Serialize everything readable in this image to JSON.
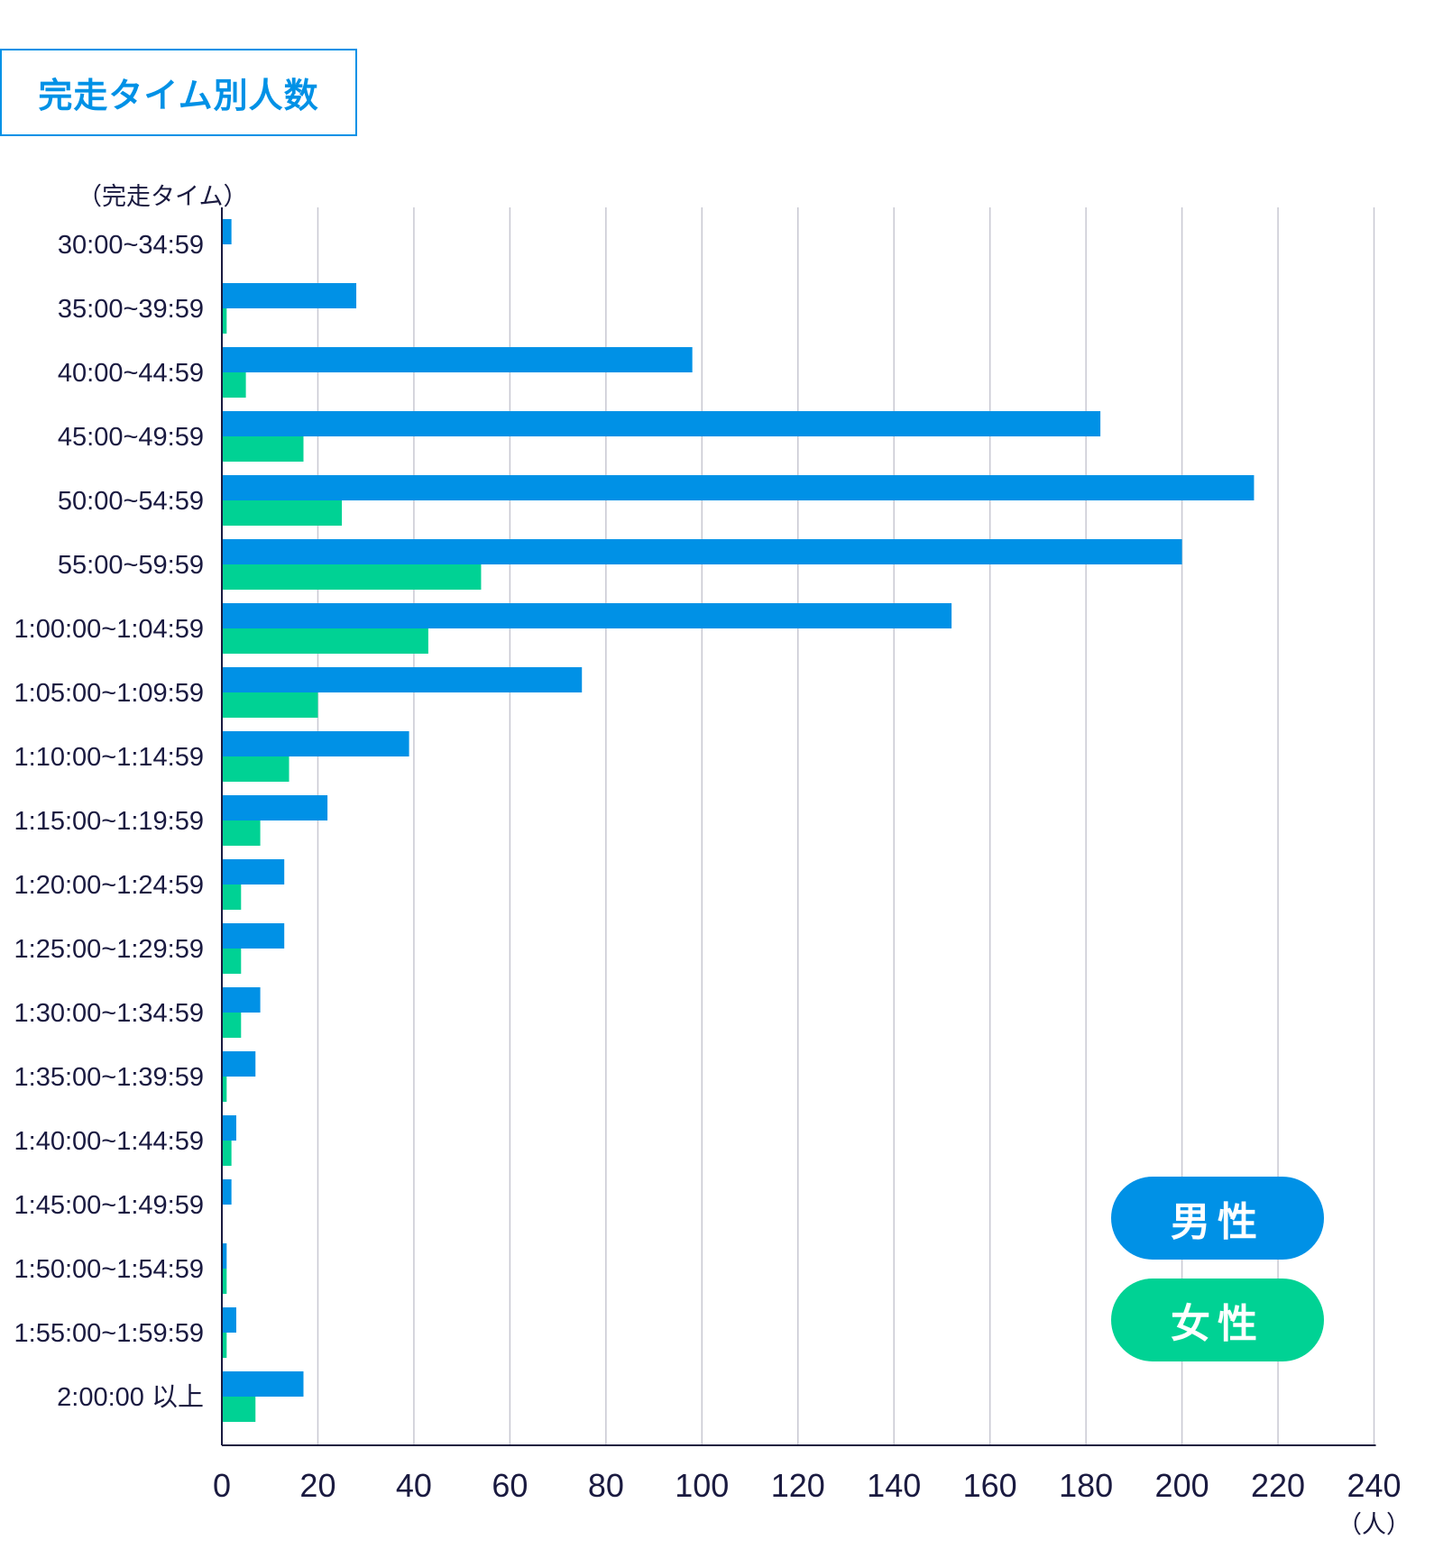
{
  "title": "完走タイム別人数",
  "colors": {
    "male": "#0091e6",
    "female": "#00d294",
    "grid": "#c8c8d2",
    "axis": "#1a1a40",
    "title": "#0091e6"
  },
  "legend": {
    "male": "男性",
    "female": "女性"
  },
  "chart_data": {
    "type": "bar",
    "orientation": "horizontal",
    "title": "完走タイム別人数",
    "ylabel": "（完走タイム）",
    "xlabel": "（人）",
    "xlim": [
      0,
      240
    ],
    "xticks": [
      0,
      20,
      40,
      60,
      80,
      100,
      120,
      140,
      160,
      180,
      200,
      220,
      240
    ],
    "grid": true,
    "legend_position": "bottom-right",
    "categories": [
      "30:00~34:59",
      "35:00~39:59",
      "40:00~44:59",
      "45:00~49:59",
      "50:00~54:59",
      "55:00~59:59",
      "1:00:00~1:04:59",
      "1:05:00~1:09:59",
      "1:10:00~1:14:59",
      "1:15:00~1:19:59",
      "1:20:00~1:24:59",
      "1:25:00~1:29:59",
      "1:30:00~1:34:59",
      "1:35:00~1:39:59",
      "1:40:00~1:44:59",
      "1:45:00~1:49:59",
      "1:50:00~1:54:59",
      "1:55:00~1:59:59",
      "2:00:00 以上"
    ],
    "series": [
      {
        "name": "男性",
        "values": [
          2,
          28,
          98,
          183,
          215,
          200,
          152,
          75,
          39,
          22,
          13,
          13,
          8,
          7,
          3,
          2,
          1,
          3,
          17
        ]
      },
      {
        "name": "女性",
        "values": [
          0,
          1,
          5,
          17,
          25,
          54,
          43,
          20,
          14,
          8,
          4,
          4,
          4,
          1,
          2,
          0,
          1,
          1,
          7
        ]
      }
    ]
  }
}
